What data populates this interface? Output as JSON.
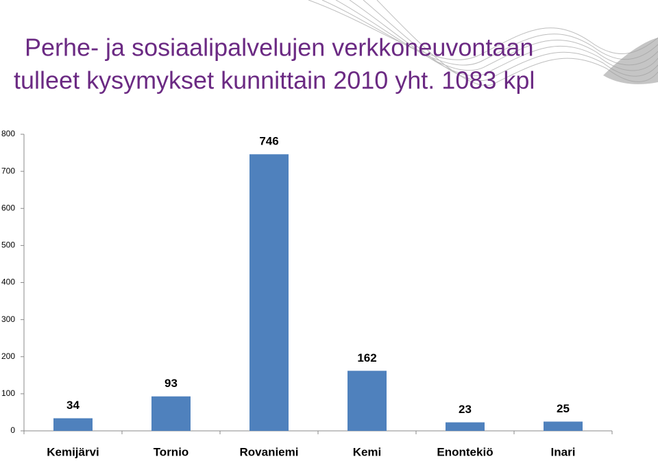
{
  "chart_data": {
    "type": "bar",
    "title": [
      "Perhe- ja sosiaalipalvelujen verkkoneuvontaan",
      "tulleet kysymykset kunnittain  2010 yht. 1083 kpl"
    ],
    "categories": [
      "Kemijärvi",
      "Tornio",
      "Rovaniemi",
      "Kemi",
      "Enontekiö",
      "Inari"
    ],
    "values": [
      34,
      93,
      746,
      162,
      23,
      25
    ],
    "color": "#4f81bd",
    "ylim": [
      0,
      800
    ],
    "yticks": [
      0,
      100,
      200,
      300,
      400,
      500,
      600,
      700,
      800
    ],
    "grid": false
  }
}
